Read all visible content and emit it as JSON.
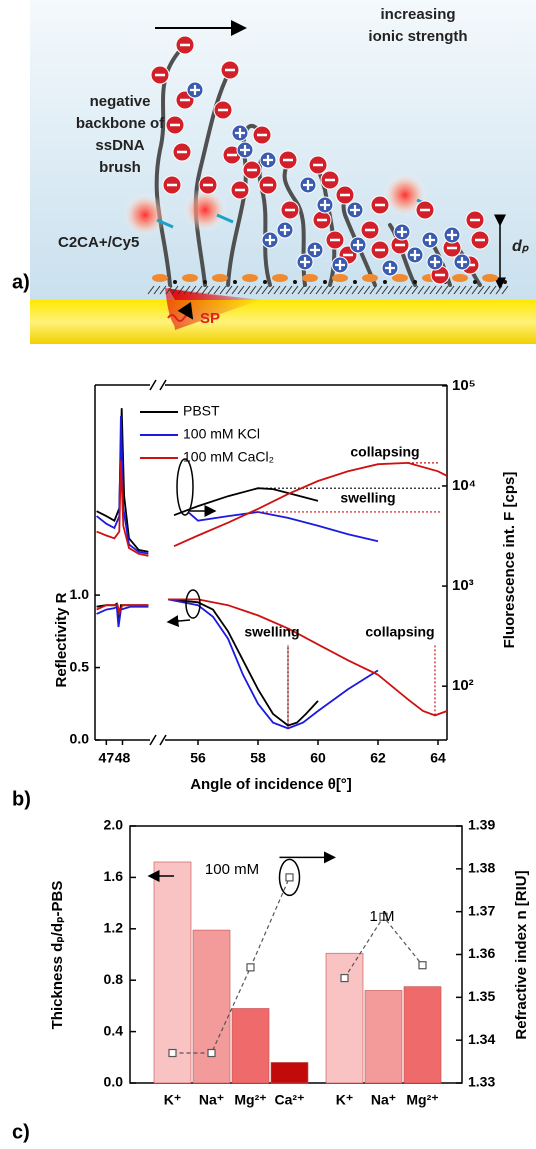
{
  "panel_a": {
    "label": "a)",
    "arrow_text": [
      "increasing",
      "ionic strength"
    ],
    "brush_text": [
      "negative",
      "backbone of",
      "ssDNA",
      "brush"
    ],
    "dye_label": "C2CA+/Cy5",
    "thickness_label": "dₚ",
    "sp_label": "SP"
  },
  "chart_data": [
    {
      "type": "line",
      "panel_label": "b)",
      "xlabel": "Angle of incidence θ[°]",
      "ylabel": "Reflectivity R",
      "y2label": "Fluorescence int. F [cps]",
      "xlim": [
        46.3,
        64.3
      ],
      "xbreak": [
        49.7,
        54.9
      ],
      "xticks": [
        47,
        48,
        56,
        58,
        60,
        62,
        64
      ],
      "ylim": [
        0,
        2.45
      ],
      "yticks": [
        {
          "value": 0,
          "label": "0.0"
        },
        {
          "value": 0.5,
          "label": "0.5"
        },
        {
          "value": 1,
          "label": "1.0"
        }
      ],
      "y2lim": [
        29,
        102000
      ],
      "y2log": true,
      "y2ticks": [
        {
          "value": 100,
          "label": "10²"
        },
        {
          "value": 1000,
          "label": "10³"
        },
        {
          "value": 10000,
          "label": "10⁴"
        },
        {
          "value": 100000,
          "label": "10⁵"
        }
      ],
      "annotations": {
        "top_collapsing": "collapsing",
        "top_swelling": "swelling",
        "bottom_swelling": "swelling",
        "bottom_collapsing": "collapsing"
      },
      "series": [
        {
          "name": "PBST",
          "color": "#000000",
          "reflectivity": {
            "x": [
              46.4,
              47,
              47.5,
              47.65,
              47.75,
              47.9,
              48.5,
              49.6,
              55,
              56,
              56.5,
              57,
              57.5,
              58,
              58.5,
              59,
              59.3,
              59.6,
              60
            ],
            "values": [
              0.92,
              0.93,
              0.93,
              0.94,
              0.8,
              0.93,
              0.93,
              0.93,
              0.97,
              0.95,
              0.9,
              0.75,
              0.55,
              0.35,
              0.18,
              0.1,
              0.12,
              0.18,
              0.27
            ]
          },
          "fluorescence": {
            "x": [
              46.4,
              47,
              47.5,
              47.8,
              47.95,
              48.1,
              48.4,
              49,
              49.6,
              55.2,
              56,
              57,
              58,
              58.5,
              59,
              60
            ],
            "values": [
              5600,
              5000,
              4500,
              6000,
              60000,
              8000,
              3000,
              2300,
              2200,
              5100,
              6300,
              7900,
              9500,
              9300,
              8500,
              7100
            ]
          }
        },
        {
          "name": "100 mM KCl",
          "color": "#1a1ae0",
          "reflectivity": {
            "x": [
              46.4,
              47,
              47.5,
              47.65,
              47.75,
              47.9,
              48.5,
              49.6,
              55,
              56,
              56.5,
              57,
              57.5,
              58,
              58.5,
              59,
              59.5,
              60,
              61,
              62
            ],
            "values": [
              0.87,
              0.9,
              0.91,
              0.92,
              0.78,
              0.9,
              0.92,
              0.92,
              0.97,
              0.93,
              0.85,
              0.7,
              0.45,
              0.25,
              0.12,
              0.08,
              0.12,
              0.2,
              0.35,
              0.48
            ]
          },
          "fluorescence": {
            "x": [
              46.4,
              47,
              47.5,
              47.8,
              47.9,
              48.05,
              48.4,
              49,
              49.6,
              55.7,
              56,
              57,
              58,
              59,
              60,
              61,
              62
            ],
            "values": [
              5000,
              4200,
              3800,
              5000,
              50000,
              6000,
              2600,
              2200,
              2100,
              5400,
              4500,
              5000,
              5500,
              4800,
              4000,
              3300,
              2800
            ]
          }
        },
        {
          "name": "100 mM CaCl₂",
          "color": "#d01010",
          "reflectivity": {
            "x": [
              46.4,
              47,
              47.5,
              47.7,
              47.8,
              48,
              48.5,
              49.6,
              55,
              56,
              57,
              58,
              59,
              60,
              61,
              62,
              63,
              63.5,
              63.9,
              64.3
            ],
            "values": [
              0.9,
              0.93,
              0.93,
              0.93,
              0.88,
              0.93,
              0.93,
              0.93,
              0.97,
              0.97,
              0.93,
              0.86,
              0.77,
              0.66,
              0.55,
              0.45,
              0.28,
              0.2,
              0.17,
              0.2
            ]
          },
          "fluorescence": {
            "x": [
              46.4,
              47,
              47.5,
              47.8,
              47.9,
              48.05,
              48.4,
              49,
              49.6,
              55.2,
              56,
              57,
              58,
              59,
              60,
              61,
              62,
              63,
              64,
              64.3
            ],
            "values": [
              3500,
              3200,
              3000,
              3500,
              18000,
              4000,
              2400,
              2100,
              2000,
              2500,
              3200,
              4300,
              5900,
              8300,
              11200,
              14000,
              16500,
              17000,
              14000,
              12600
            ]
          }
        }
      ]
    },
    {
      "type": "bar",
      "panel_label": "c)",
      "ylabel": "Thickness dₚ/dₚ-PBS",
      "y2label": "Refractive index n [RIU]",
      "ylim": [
        0,
        2
      ],
      "yticks": [
        {
          "value": 0,
          "label": "0.0"
        },
        0.4,
        0.8,
        1.2,
        1.6,
        {
          "value": 2,
          "label": "2.0"
        }
      ],
      "y2lim": [
        1.33,
        1.39
      ],
      "y2ticks": [
        1.33,
        1.34,
        1.35,
        1.36,
        1.37,
        1.38,
        1.39
      ],
      "groups": [
        {
          "label": "100 mM",
          "categories": [
            "K⁺",
            "Na⁺",
            "Mg²⁺",
            "Ca²⁺"
          ],
          "colors": [
            "#f9c3c3",
            "#f39a9a",
            "#ef6a6a",
            "#c30a0a"
          ],
          "values": [
            1.72,
            1.19,
            0.58,
            0.16
          ],
          "refractive_index": [
            1.337,
            1.337,
            1.357,
            1.378
          ]
        },
        {
          "label": "1 M",
          "categories": [
            "K⁺",
            "Na⁺",
            "Mg²⁺"
          ],
          "colors": [
            "#f9c3c3",
            "#f39a9a",
            "#ef6a6a"
          ],
          "values": [
            1.01,
            0.72,
            0.75
          ],
          "refractive_index": [
            1.3545,
            1.3688,
            1.3575
          ]
        }
      ]
    }
  ]
}
